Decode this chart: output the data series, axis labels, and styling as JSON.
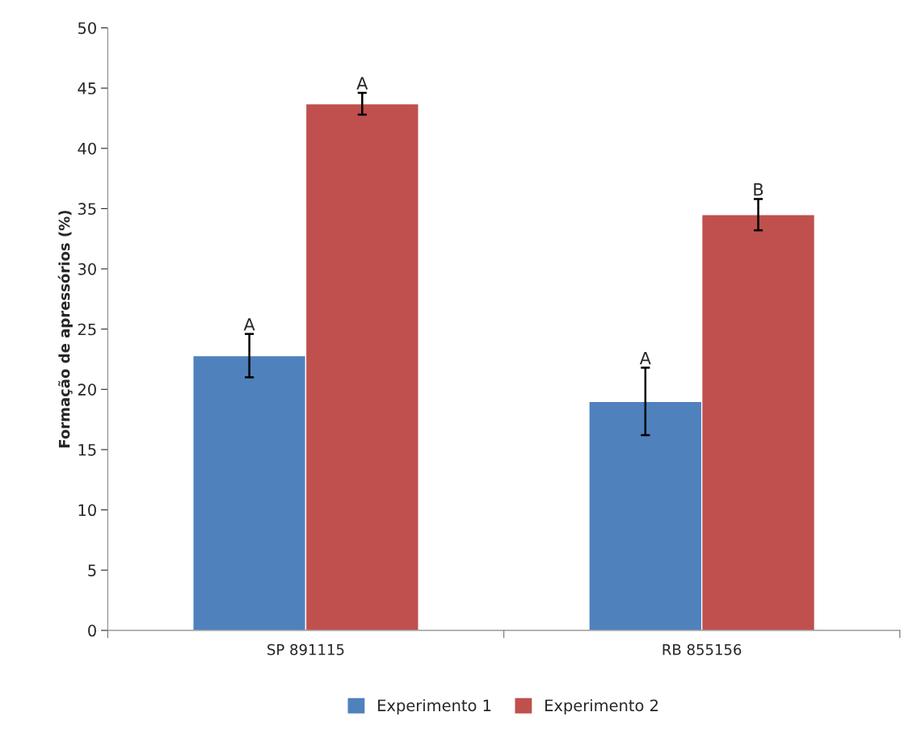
{
  "chart_data": {
    "type": "bar",
    "ylabel": "Formação de apressórios (%)",
    "categories": [
      "SP 891115",
      "RB 855156"
    ],
    "series": [
      {
        "name": "Experimento 1",
        "color": "#4f81bd",
        "values": [
          22.8,
          19.0
        ],
        "errors": [
          1.8,
          2.8
        ]
      },
      {
        "name": "Experimento 2",
        "color": "#c0504d",
        "values": [
          43.7,
          34.5
        ],
        "errors": [
          0.9,
          1.3
        ]
      }
    ],
    "ylim": [
      0,
      50
    ],
    "yticks": [
      0,
      5,
      10,
      15,
      20,
      25,
      30,
      35,
      40,
      45,
      50
    ],
    "annotations": [
      "A",
      "A",
      "A",
      "B"
    ],
    "grid": false,
    "legend": "bottom"
  }
}
